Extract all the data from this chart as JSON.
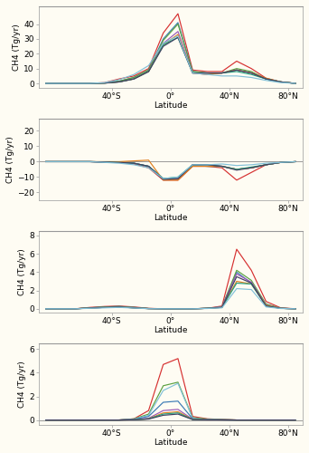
{
  "latitudes": [
    -85,
    -75,
    -65,
    -55,
    -45,
    -35,
    -25,
    -15,
    -5,
    5,
    15,
    25,
    35,
    45,
    55,
    65,
    75,
    85
  ],
  "background_color": "#fefcf3",
  "ylabel": "CH4 (Tg/yr)",
  "xlabel": "Latitude",
  "xtick_labels": [
    "40°S",
    "0°",
    "40°N",
    "80°N"
  ],
  "xtick_positions": [
    -40,
    0,
    40,
    80
  ],
  "panel1": {
    "ylim": [
      -3,
      52
    ],
    "yticks": [
      0,
      10,
      20,
      30,
      40
    ],
    "lines": [
      {
        "color": "#d63030",
        "values": [
          0,
          0,
          0,
          0,
          0.5,
          3.0,
          5,
          10,
          34,
          47,
          9,
          8,
          8,
          15,
          10,
          3.5,
          1,
          0
        ]
      },
      {
        "color": "#3a7ab5",
        "values": [
          0,
          0,
          0,
          0,
          0.2,
          1.5,
          4,
          9,
          30,
          41,
          8,
          7,
          7,
          9,
          7,
          3,
          1,
          0
        ]
      },
      {
        "color": "#5aa040",
        "values": [
          0,
          0,
          0,
          0,
          0.2,
          1.5,
          4,
          9,
          29,
          40,
          8,
          7,
          7,
          10,
          8,
          3,
          1,
          0
        ]
      },
      {
        "color": "#9b59b6",
        "values": [
          0,
          0,
          0,
          0,
          0.2,
          1.0,
          3,
          8,
          27,
          35,
          7,
          6,
          7,
          9,
          7,
          3,
          1,
          0
        ]
      },
      {
        "color": "#e08020",
        "values": [
          0,
          0,
          0,
          0,
          0.2,
          1.0,
          3,
          8,
          26,
          33,
          7,
          6,
          7,
          9,
          7,
          3.5,
          1,
          0
        ]
      },
      {
        "color": "#20a080",
        "values": [
          0,
          0,
          0,
          0,
          0.2,
          1.0,
          3,
          8,
          26,
          31,
          7,
          7,
          7,
          8,
          6,
          3,
          1,
          0
        ]
      },
      {
        "color": "#404060",
        "values": [
          0,
          0,
          0,
          0,
          0.2,
          1.0,
          3,
          8,
          25,
          31,
          7,
          7,
          7,
          9,
          7,
          3,
          1,
          0
        ]
      },
      {
        "color": "#80c0d8",
        "values": [
          0,
          0,
          0,
          0,
          0.5,
          2.5,
          6,
          12,
          27,
          32,
          7,
          6,
          5,
          5,
          4,
          2,
          0.5,
          0
        ]
      }
    ]
  },
  "panel2": {
    "ylim": [
      -25,
      28
    ],
    "yticks": [
      -20,
      -10,
      0,
      10,
      20
    ],
    "hline": 0,
    "lines": [
      {
        "color": "#d63030",
        "values": [
          0,
          0,
          0,
          0,
          -0.5,
          -0.5,
          -1.5,
          -4,
          -12,
          -12,
          -3,
          -3,
          -4,
          -12,
          -7,
          -2,
          -0.5,
          0
        ]
      },
      {
        "color": "#3a7ab5",
        "values": [
          0,
          0,
          0,
          0,
          -0.2,
          -0.5,
          -1,
          -3,
          -11.5,
          -11.5,
          -2.5,
          -3,
          -3,
          -5,
          -4,
          -2,
          -0.5,
          0
        ]
      },
      {
        "color": "#5aa040",
        "values": [
          0,
          0,
          0,
          0,
          -0.2,
          -0.5,
          -1,
          -3,
          -11,
          -11,
          -2.5,
          -3,
          -3,
          -5,
          -4,
          -2,
          -0.5,
          0
        ]
      },
      {
        "color": "#9b59b6",
        "values": [
          0,
          0,
          0,
          0,
          -0.2,
          -0.5,
          -1,
          -3,
          -11,
          -11,
          -2,
          -2,
          -3,
          -5,
          -4,
          -2,
          -0.5,
          0
        ]
      },
      {
        "color": "#e08020",
        "values": [
          0,
          0,
          0,
          0,
          0,
          0,
          0.5,
          1,
          -12,
          -12,
          -3,
          -3,
          -3,
          -5,
          -4,
          -2,
          -0.5,
          0
        ]
      },
      {
        "color": "#20a080",
        "values": [
          0,
          0,
          0,
          0,
          -0.2,
          -0.5,
          -1,
          -3,
          -11,
          -10,
          -2,
          -2,
          -3,
          -5,
          -3.5,
          -2,
          -0.5,
          0
        ]
      },
      {
        "color": "#404060",
        "values": [
          0,
          0,
          0,
          0,
          -0.2,
          -0.5,
          -1,
          -3,
          -11.5,
          -11,
          -2,
          -2,
          -3,
          -5.5,
          -4,
          -2,
          -0.5,
          0
        ]
      },
      {
        "color": "#80c0d8",
        "values": [
          0,
          0,
          0,
          0,
          -0.5,
          -1,
          -2,
          -4,
          -11,
          -10,
          -2,
          -2,
          -1.5,
          -2.5,
          -2,
          -1,
          -0.5,
          0
        ]
      }
    ]
  },
  "panel3": {
    "ylim": [
      -0.4,
      8.5
    ],
    "yticks": [
      0.0,
      2.0,
      4.0,
      6.0,
      8.0
    ],
    "lines": [
      {
        "color": "#d63030",
        "values": [
          0,
          0,
          0,
          0.15,
          0.25,
          0.3,
          0.2,
          0.05,
          0,
          0,
          0,
          0.05,
          0.3,
          6.5,
          4.2,
          0.8,
          0.1,
          0
        ]
      },
      {
        "color": "#3a7ab5",
        "values": [
          0,
          0,
          0,
          0.1,
          0.2,
          0.25,
          0.15,
          0.03,
          0,
          0,
          0,
          0.05,
          0.2,
          4.0,
          2.8,
          0.5,
          0.05,
          0
        ]
      },
      {
        "color": "#5aa040",
        "values": [
          0,
          0,
          0,
          0.1,
          0.2,
          0.25,
          0.15,
          0.03,
          0,
          0,
          0,
          0.05,
          0.2,
          4.2,
          3.1,
          0.5,
          0.05,
          0
        ]
      },
      {
        "color": "#9b59b6",
        "values": [
          0,
          0,
          0,
          0.08,
          0.15,
          0.2,
          0.12,
          0.02,
          0,
          0,
          0,
          0.05,
          0.2,
          3.8,
          2.9,
          0.4,
          0.05,
          0
        ]
      },
      {
        "color": "#e08020",
        "values": [
          0,
          0,
          0,
          0.08,
          0.15,
          0.2,
          0.1,
          0.02,
          0,
          0,
          0,
          0.05,
          0.15,
          3.0,
          2.7,
          0.4,
          0.05,
          0
        ]
      },
      {
        "color": "#20a080",
        "values": [
          0,
          0,
          0,
          0.08,
          0.15,
          0.2,
          0.1,
          0.02,
          0,
          0,
          0,
          0.05,
          0.15,
          2.8,
          2.7,
          0.3,
          0.05,
          0
        ]
      },
      {
        "color": "#404060",
        "values": [
          0,
          0,
          0,
          0.08,
          0.15,
          0.2,
          0.1,
          0.02,
          0,
          0,
          0,
          0.05,
          0.15,
          3.5,
          2.8,
          0.3,
          0.05,
          0
        ]
      },
      {
        "color": "#80c0d8",
        "values": [
          0,
          0,
          0,
          0.05,
          0.1,
          0.15,
          0.08,
          0.01,
          0,
          0,
          0,
          0.03,
          0.1,
          2.2,
          2.1,
          0.2,
          0.03,
          0
        ]
      }
    ]
  },
  "panel4": {
    "ylim": [
      -0.4,
      6.5
    ],
    "yticks": [
      0.0,
      2.0,
      4.0,
      6.0
    ],
    "hline": 0,
    "lines": [
      {
        "color": "#d63030",
        "values": [
          0,
          0,
          0,
          0,
          0,
          0,
          0.1,
          0.8,
          4.7,
          5.2,
          0.3,
          0.1,
          0.05,
          0,
          0,
          0,
          0,
          0
        ]
      },
      {
        "color": "#5aa040",
        "values": [
          0,
          0,
          0,
          0,
          0,
          0,
          0.1,
          0.5,
          2.9,
          3.2,
          0.2,
          0.08,
          0.03,
          0,
          0,
          0,
          0,
          0
        ]
      },
      {
        "color": "#80c0d8",
        "values": [
          0,
          0,
          0,
          0,
          0,
          0,
          0.08,
          0.4,
          2.5,
          3.1,
          0.15,
          0.05,
          0.02,
          0,
          0,
          0,
          0,
          0
        ]
      },
      {
        "color": "#3a7ab5",
        "values": [
          0,
          0,
          0,
          0,
          0,
          0,
          0.05,
          0.3,
          1.5,
          1.6,
          0.1,
          0.04,
          0.01,
          0,
          0,
          0,
          0,
          0
        ]
      },
      {
        "color": "#9b59b6",
        "values": [
          0,
          0,
          0,
          0,
          0,
          0,
          0.03,
          0.15,
          0.8,
          0.9,
          0.06,
          0.02,
          0.01,
          0,
          0,
          0,
          0,
          0
        ]
      },
      {
        "color": "#e08020",
        "values": [
          0,
          0,
          0,
          0,
          0,
          0,
          0.02,
          0.1,
          0.6,
          0.7,
          0.05,
          0.02,
          0.01,
          0,
          0,
          0,
          0,
          0
        ]
      },
      {
        "color": "#20a080",
        "values": [
          0,
          0,
          0,
          0,
          0,
          0,
          0.02,
          0.1,
          0.5,
          0.6,
          0.04,
          0.02,
          0.01,
          0,
          0,
          0,
          0,
          0
        ]
      },
      {
        "color": "#404060",
        "values": [
          0,
          0,
          0,
          0,
          0,
          0,
          0.02,
          0.08,
          0.4,
          0.5,
          0.04,
          0.01,
          0.01,
          0,
          0,
          0,
          0,
          0
        ]
      }
    ]
  }
}
